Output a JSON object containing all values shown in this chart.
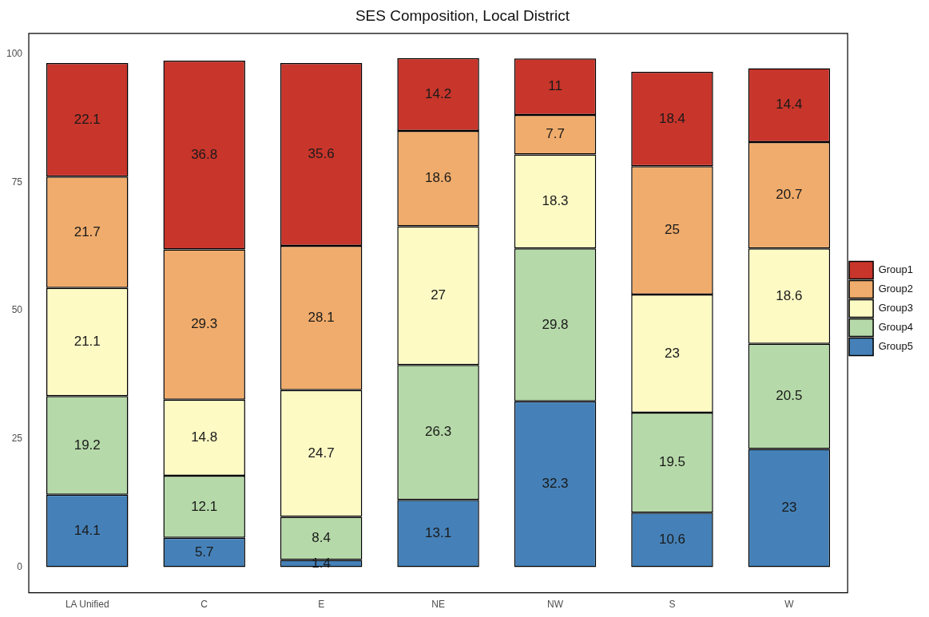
{
  "chart_data": {
    "type": "bar",
    "title": "SES Composition, Local District",
    "categories": [
      "LA Unified",
      "C",
      "E",
      "NE",
      "NW",
      "S",
      "W"
    ],
    "stacked": true,
    "series": [
      {
        "name": "Group5",
        "color": "#4581b8",
        "values": [
          14.1,
          5.7,
          1.4,
          13.1,
          32.3,
          10.6,
          23
        ]
      },
      {
        "name": "Group4",
        "color": "#b5d9a8",
        "values": [
          19.2,
          12.1,
          8.4,
          26.3,
          29.8,
          19.5,
          20.5
        ]
      },
      {
        "name": "Group3",
        "color": "#fdfac4",
        "values": [
          21.1,
          14.8,
          24.7,
          27,
          18.3,
          23,
          18.6
        ]
      },
      {
        "name": "Group2",
        "color": "#f0ac6c",
        "values": [
          21.7,
          29.3,
          28.1,
          18.6,
          7.7,
          25,
          20.7
        ]
      },
      {
        "name": "Group1",
        "color": "#c8352b",
        "values": [
          22.1,
          36.8,
          35.6,
          14.2,
          11,
          18.4,
          14.4
        ]
      }
    ],
    "ylim": [
      -5,
      104
    ],
    "yticks": [
      0,
      25,
      50,
      75,
      100
    ],
    "grid": false,
    "legend": "right",
    "data_labels": true
  }
}
